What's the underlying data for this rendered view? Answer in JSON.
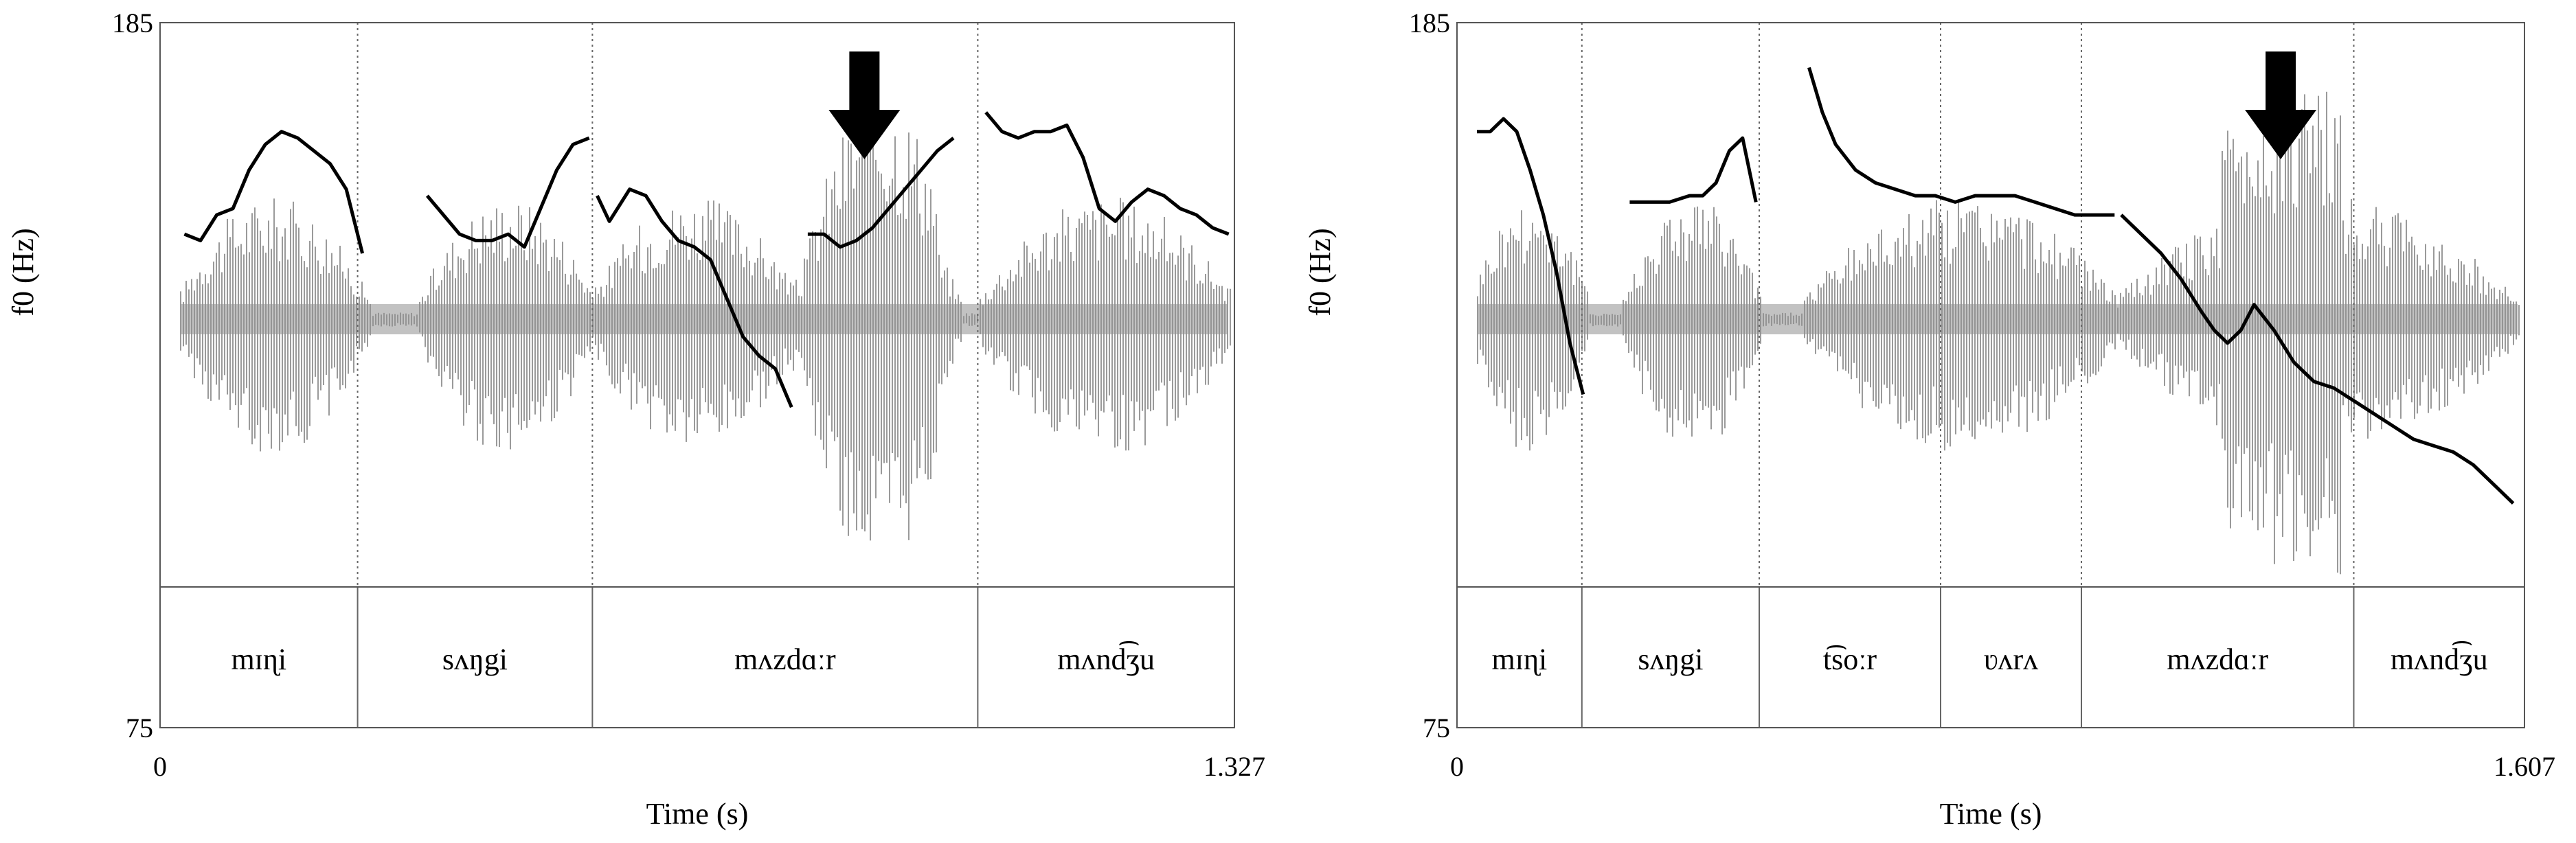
{
  "chart_data": [
    {
      "type": "line",
      "title": "",
      "xlabel": "Time (s)",
      "ylabel": "f0  (Hz)",
      "xlim": [
        0,
        1.327
      ],
      "ylim": [
        75,
        185
      ],
      "x_ticks": [
        "0",
        "1.327"
      ],
      "y_ticks": [
        "185",
        "75"
      ],
      "tiers": [
        {
          "label": "mɪɳi",
          "start": 0.0,
          "end": 0.244
        },
        {
          "label": "sʌŋgi",
          "start": 0.244,
          "end": 0.534
        },
        {
          "label": "mʌzdɑːr",
          "start": 0.534,
          "end": 1.01
        },
        {
          "label": "mʌnd͡ʒu",
          "start": 1.01,
          "end": 1.327
        }
      ],
      "boundaries": [
        0.244,
        0.534,
        1.01
      ],
      "arrow_at": 0.87,
      "series": [
        {
          "x": [
            0.03,
            0.05,
            0.07,
            0.09,
            0.11,
            0.13,
            0.15,
            0.17,
            0.19,
            0.21,
            0.23,
            0.25
          ],
          "y": [
            152,
            151,
            155,
            156,
            162,
            166,
            168,
            167,
            165,
            163,
            159,
            149
          ]
        },
        {
          "x": [
            0.33,
            0.35,
            0.37,
            0.39,
            0.41,
            0.43,
            0.45,
            0.47,
            0.49,
            0.51,
            0.53
          ],
          "y": [
            158,
            155,
            152,
            151,
            151,
            152,
            150,
            156,
            162,
            166,
            167
          ]
        },
        {
          "x": [
            0.54,
            0.555,
            0.58,
            0.6,
            0.62,
            0.64,
            0.66,
            0.68,
            0.7,
            0.72,
            0.74,
            0.76,
            0.78
          ],
          "y": [
            158,
            154,
            159,
            158,
            154,
            151,
            150,
            148,
            142,
            136,
            133,
            131,
            125
          ]
        },
        {
          "x": [
            0.8,
            0.82,
            0.84,
            0.86,
            0.88,
            0.9,
            0.92,
            0.94,
            0.96,
            0.98
          ],
          "y": [
            152,
            152,
            150,
            151,
            153,
            156,
            159,
            162,
            165,
            167
          ]
        },
        {
          "x": [
            1.02,
            1.04,
            1.06,
            1.08,
            1.1,
            1.12,
            1.14,
            1.16,
            1.18,
            1.2,
            1.22,
            1.24,
            1.26,
            1.28,
            1.3,
            1.32
          ],
          "y": [
            171,
            168,
            167,
            168,
            168,
            169,
            164,
            156,
            154,
            157,
            159,
            158,
            156,
            155,
            153,
            152
          ]
        }
      ]
    },
    {
      "type": "line",
      "title": "",
      "xlabel": "Time (s)",
      "ylabel": "f0  (Hz)",
      "xlim": [
        0,
        1.607
      ],
      "ylim": [
        75,
        185
      ],
      "x_ticks": [
        "0",
        "1.607"
      ],
      "y_ticks": [
        "185",
        "75"
      ],
      "tiers": [
        {
          "label": "mɪɳi",
          "start": 0.0,
          "end": 0.188
        },
        {
          "label": "sʌŋgi",
          "start": 0.188,
          "end": 0.455
        },
        {
          "label": "t͡soːr",
          "start": 0.455,
          "end": 0.728
        },
        {
          "label": "ʋʌrʌ",
          "start": 0.728,
          "end": 0.94
        },
        {
          "label": "mʌzdɑːr",
          "start": 0.94,
          "end": 1.35
        },
        {
          "label": "mʌnd͡ʒu",
          "start": 1.35,
          "end": 1.607
        }
      ],
      "boundaries": [
        0.188,
        0.455,
        0.728,
        0.94,
        1.35
      ],
      "arrow_at": 1.24,
      "series": [
        {
          "x": [
            0.03,
            0.05,
            0.07,
            0.09,
            0.11,
            0.13,
            0.15,
            0.17,
            0.19
          ],
          "y": [
            168,
            168,
            170,
            168,
            162,
            155,
            146,
            135,
            127
          ]
        },
        {
          "x": [
            0.26,
            0.29,
            0.32,
            0.35,
            0.37,
            0.39,
            0.41,
            0.43,
            0.45
          ],
          "y": [
            157,
            157,
            157,
            158,
            158,
            160,
            165,
            167,
            157
          ]
        },
        {
          "x": [
            0.53,
            0.55,
            0.57,
            0.6,
            0.63,
            0.66,
            0.69,
            0.72,
            0.75,
            0.78,
            0.81,
            0.84,
            0.87,
            0.9,
            0.93,
            0.96,
            0.99
          ],
          "y": [
            178,
            171,
            166,
            162,
            160,
            159,
            158,
            158,
            157,
            158,
            158,
            158,
            157,
            156,
            155,
            155,
            155
          ]
        },
        {
          "x": [
            1.0,
            1.03,
            1.06,
            1.09,
            1.12,
            1.14,
            1.16,
            1.18,
            1.2,
            1.23,
            1.26,
            1.29,
            1.32,
            1.35,
            1.38,
            1.41,
            1.44,
            1.47,
            1.5,
            1.53,
            1.56,
            1.59
          ],
          "y": [
            155,
            152,
            149,
            145,
            140,
            137,
            135,
            137,
            141,
            137,
            132,
            129,
            128,
            126,
            124,
            122,
            120,
            119,
            118,
            116,
            113,
            110
          ]
        }
      ]
    }
  ]
}
